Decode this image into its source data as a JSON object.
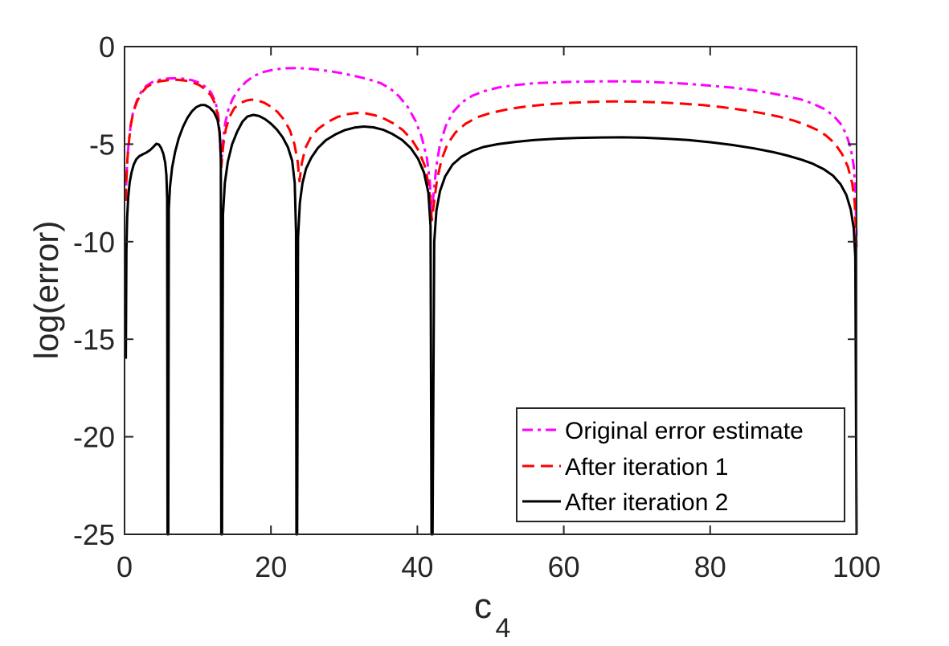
{
  "figure": {
    "background": "#ffffff",
    "axis_color": "#262626",
    "tick_label_color": "#262626",
    "label_color": "#262626",
    "legend_text_color": "#000000",
    "legend_border_color": "#262626",
    "legend_background": "#ffffff"
  },
  "chart_data": {
    "type": "line",
    "title": "",
    "xlabel": "c",
    "xlabel_sub": "4",
    "ylabel": "log(error)",
    "xlim": [
      0,
      100
    ],
    "ylim": [
      -25,
      0
    ],
    "x_ticks": [
      0,
      20,
      40,
      60,
      80,
      100
    ],
    "y_ticks": [
      0,
      -5,
      -10,
      -15,
      -20,
      -25
    ],
    "grid": false,
    "box": true,
    "legend_position": "inside-lower-right",
    "series": [
      {
        "name": "Original error estimate",
        "color": "#ff00ff",
        "line_style": "dash-dot",
        "dash": "13,6,4,6",
        "width": 3,
        "points": [
          [
            0.15,
            -7.9
          ],
          [
            0.25,
            -6.8
          ],
          [
            0.4,
            -5.7
          ],
          [
            0.6,
            -4.8
          ],
          [
            0.85,
            -4.0
          ],
          [
            1.2,
            -3.3
          ],
          [
            1.7,
            -2.75
          ],
          [
            2.3,
            -2.3
          ],
          [
            3.0,
            -2.0
          ],
          [
            3.8,
            -1.82
          ],
          [
            4.8,
            -1.7
          ],
          [
            6.0,
            -1.63
          ],
          [
            7.2,
            -1.62
          ],
          [
            8.2,
            -1.65
          ],
          [
            9.2,
            -1.72
          ],
          [
            10.2,
            -1.85
          ],
          [
            11.0,
            -2.05
          ],
          [
            11.8,
            -2.35
          ],
          [
            12.4,
            -2.8
          ],
          [
            12.8,
            -3.5
          ],
          [
            13.0,
            -4.5
          ],
          [
            13.2,
            -6.1
          ],
          [
            13.45,
            -4.8
          ],
          [
            13.75,
            -3.9
          ],
          [
            14.2,
            -3.2
          ],
          [
            14.8,
            -2.65
          ],
          [
            15.6,
            -2.2
          ],
          [
            16.6,
            -1.8
          ],
          [
            17.7,
            -1.5
          ],
          [
            19.0,
            -1.3
          ],
          [
            20.5,
            -1.17
          ],
          [
            22.0,
            -1.11
          ],
          [
            23.5,
            -1.1
          ],
          [
            25.0,
            -1.13
          ],
          [
            26.5,
            -1.18
          ],
          [
            28.0,
            -1.26
          ],
          [
            29.5,
            -1.35
          ],
          [
            31.0,
            -1.47
          ],
          [
            32.5,
            -1.6
          ],
          [
            33.8,
            -1.73
          ],
          [
            35.0,
            -1.88
          ],
          [
            36.3,
            -2.15
          ],
          [
            37.5,
            -2.55
          ],
          [
            38.7,
            -3.1
          ],
          [
            39.8,
            -3.85
          ],
          [
            40.6,
            -4.65
          ],
          [
            41.3,
            -5.7
          ],
          [
            41.7,
            -6.9
          ],
          [
            41.95,
            -8.6
          ],
          [
            42.25,
            -7.4
          ],
          [
            42.6,
            -6.1
          ],
          [
            43.1,
            -5.0
          ],
          [
            43.9,
            -4.05
          ],
          [
            44.9,
            -3.35
          ],
          [
            46.1,
            -2.85
          ],
          [
            47.5,
            -2.52
          ],
          [
            49.0,
            -2.3
          ],
          [
            51.0,
            -2.1
          ],
          [
            53.5,
            -1.97
          ],
          [
            56.0,
            -1.88
          ],
          [
            59.0,
            -1.83
          ],
          [
            62.0,
            -1.8
          ],
          [
            65.0,
            -1.78
          ],
          [
            68.0,
            -1.78
          ],
          [
            71.0,
            -1.8
          ],
          [
            74.0,
            -1.85
          ],
          [
            77.0,
            -1.91
          ],
          [
            80.0,
            -2.0
          ],
          [
            83.0,
            -2.1
          ],
          [
            86.0,
            -2.24
          ],
          [
            88.5,
            -2.4
          ],
          [
            90.5,
            -2.55
          ],
          [
            92.5,
            -2.72
          ],
          [
            94.0,
            -2.92
          ],
          [
            95.5,
            -3.18
          ],
          [
            96.8,
            -3.52
          ],
          [
            97.8,
            -3.95
          ],
          [
            98.6,
            -4.5
          ],
          [
            99.2,
            -5.2
          ],
          [
            99.6,
            -6.1
          ],
          [
            99.85,
            -7.4
          ],
          [
            100,
            -9.7
          ]
        ]
      },
      {
        "name": "After iteration 1",
        "color": "#ff0000",
        "line_style": "dashed",
        "dash": "15,8",
        "width": 3,
        "points": [
          [
            0.15,
            -7.9
          ],
          [
            0.25,
            -6.85
          ],
          [
            0.4,
            -5.75
          ],
          [
            0.6,
            -4.85
          ],
          [
            0.85,
            -4.05
          ],
          [
            1.2,
            -3.35
          ],
          [
            1.7,
            -2.82
          ],
          [
            2.3,
            -2.38
          ],
          [
            3.0,
            -2.08
          ],
          [
            3.8,
            -1.9
          ],
          [
            4.8,
            -1.78
          ],
          [
            6.0,
            -1.72
          ],
          [
            7.2,
            -1.7
          ],
          [
            8.2,
            -1.74
          ],
          [
            9.2,
            -1.82
          ],
          [
            10.2,
            -1.97
          ],
          [
            11.0,
            -2.18
          ],
          [
            11.8,
            -2.5
          ],
          [
            12.4,
            -2.95
          ],
          [
            12.8,
            -3.65
          ],
          [
            13.0,
            -4.6
          ],
          [
            13.2,
            -6.2
          ],
          [
            13.5,
            -5.0
          ],
          [
            13.85,
            -4.2
          ],
          [
            14.35,
            -3.6
          ],
          [
            15.0,
            -3.15
          ],
          [
            15.9,
            -2.88
          ],
          [
            16.7,
            -2.76
          ],
          [
            17.4,
            -2.72
          ],
          [
            18.2,
            -2.76
          ],
          [
            19.1,
            -2.88
          ],
          [
            20.0,
            -3.08
          ],
          [
            20.9,
            -3.35
          ],
          [
            21.8,
            -3.75
          ],
          [
            22.6,
            -4.3
          ],
          [
            23.2,
            -5.0
          ],
          [
            23.65,
            -5.9
          ],
          [
            23.9,
            -6.9
          ],
          [
            24.2,
            -6.0
          ],
          [
            24.7,
            -5.2
          ],
          [
            25.5,
            -4.6
          ],
          [
            26.5,
            -4.2
          ],
          [
            27.7,
            -3.88
          ],
          [
            29.0,
            -3.62
          ],
          [
            30.3,
            -3.47
          ],
          [
            31.6,
            -3.4
          ],
          [
            32.9,
            -3.42
          ],
          [
            34.2,
            -3.52
          ],
          [
            35.5,
            -3.7
          ],
          [
            36.8,
            -3.95
          ],
          [
            38.0,
            -4.28
          ],
          [
            39.2,
            -4.75
          ],
          [
            40.2,
            -5.35
          ],
          [
            41.0,
            -6.1
          ],
          [
            41.5,
            -7.0
          ],
          [
            41.8,
            -8.0
          ],
          [
            41.98,
            -8.9
          ],
          [
            42.3,
            -7.9
          ],
          [
            42.7,
            -6.8
          ],
          [
            43.3,
            -5.8
          ],
          [
            44.1,
            -5.0
          ],
          [
            45.2,
            -4.4
          ],
          [
            46.6,
            -3.95
          ],
          [
            48.2,
            -3.62
          ],
          [
            50.0,
            -3.4
          ],
          [
            52.5,
            -3.2
          ],
          [
            55.0,
            -3.06
          ],
          [
            58.0,
            -2.95
          ],
          [
            61.0,
            -2.88
          ],
          [
            64.0,
            -2.83
          ],
          [
            67.0,
            -2.81
          ],
          [
            70.0,
            -2.82
          ],
          [
            73.0,
            -2.86
          ],
          [
            76.0,
            -2.92
          ],
          [
            79.0,
            -3.0
          ],
          [
            82.0,
            -3.12
          ],
          [
            85.0,
            -3.28
          ],
          [
            87.5,
            -3.44
          ],
          [
            89.5,
            -3.6
          ],
          [
            91.5,
            -3.8
          ],
          [
            93.0,
            -4.0
          ],
          [
            94.5,
            -4.25
          ],
          [
            95.8,
            -4.55
          ],
          [
            97.0,
            -4.95
          ],
          [
            98.0,
            -5.5
          ],
          [
            98.8,
            -6.15
          ],
          [
            99.4,
            -7.0
          ],
          [
            99.75,
            -8.0
          ],
          [
            100,
            -10.3
          ]
        ]
      },
      {
        "name": "After iteration 2",
        "color": "#000000",
        "line_style": "solid",
        "dash": "",
        "width": 3,
        "points": [
          [
            0.18,
            -16
          ],
          [
            0.25,
            -10.5
          ],
          [
            0.35,
            -8.8
          ],
          [
            0.5,
            -7.7
          ],
          [
            0.7,
            -6.95
          ],
          [
            0.95,
            -6.45
          ],
          [
            1.25,
            -6.05
          ],
          [
            1.6,
            -5.78
          ],
          [
            2.0,
            -5.62
          ],
          [
            2.5,
            -5.52
          ],
          [
            3.0,
            -5.43
          ],
          [
            3.5,
            -5.3
          ],
          [
            4.0,
            -5.12
          ],
          [
            4.35,
            -4.98
          ],
          [
            4.7,
            -5.02
          ],
          [
            5.0,
            -5.2
          ],
          [
            5.3,
            -5.5
          ],
          [
            5.55,
            -5.95
          ],
          [
            5.72,
            -6.6
          ],
          [
            5.82,
            -7.8
          ],
          [
            5.87,
            -25
          ],
          [
            5.97,
            -25
          ],
          [
            6.05,
            -8.3
          ],
          [
            6.2,
            -7.2
          ],
          [
            6.5,
            -6.2
          ],
          [
            6.9,
            -5.4
          ],
          [
            7.4,
            -4.7
          ],
          [
            8.0,
            -4.1
          ],
          [
            8.6,
            -3.65
          ],
          [
            9.2,
            -3.32
          ],
          [
            9.8,
            -3.1
          ],
          [
            10.4,
            -3.0
          ],
          [
            11.0,
            -3.0
          ],
          [
            11.6,
            -3.12
          ],
          [
            12.2,
            -3.35
          ],
          [
            12.7,
            -3.75
          ],
          [
            13.0,
            -4.4
          ],
          [
            13.15,
            -5.6
          ],
          [
            13.22,
            -25
          ],
          [
            13.32,
            -25
          ],
          [
            13.45,
            -8.6
          ],
          [
            13.7,
            -7.0
          ],
          [
            14.1,
            -5.9
          ],
          [
            14.7,
            -5.0
          ],
          [
            15.4,
            -4.35
          ],
          [
            16.1,
            -3.85
          ],
          [
            16.8,
            -3.58
          ],
          [
            17.6,
            -3.5
          ],
          [
            18.4,
            -3.56
          ],
          [
            19.2,
            -3.72
          ],
          [
            20.0,
            -3.95
          ],
          [
            20.8,
            -4.25
          ],
          [
            21.6,
            -4.65
          ],
          [
            22.3,
            -5.15
          ],
          [
            22.9,
            -5.85
          ],
          [
            23.25,
            -7.0
          ],
          [
            23.42,
            -9.5
          ],
          [
            23.48,
            -25
          ],
          [
            23.58,
            -25
          ],
          [
            23.7,
            -9.8
          ],
          [
            23.95,
            -8.0
          ],
          [
            24.3,
            -7.0
          ],
          [
            24.8,
            -6.25
          ],
          [
            25.5,
            -5.7
          ],
          [
            26.4,
            -5.2
          ],
          [
            27.5,
            -4.8
          ],
          [
            28.8,
            -4.5
          ],
          [
            30.1,
            -4.28
          ],
          [
            31.4,
            -4.15
          ],
          [
            32.7,
            -4.1
          ],
          [
            34.0,
            -4.14
          ],
          [
            35.3,
            -4.26
          ],
          [
            36.6,
            -4.48
          ],
          [
            37.9,
            -4.78
          ],
          [
            39.1,
            -5.2
          ],
          [
            40.1,
            -5.75
          ],
          [
            40.9,
            -6.45
          ],
          [
            41.5,
            -7.5
          ],
          [
            41.8,
            -9.2
          ],
          [
            41.93,
            -25
          ],
          [
            42.08,
            -25
          ],
          [
            42.3,
            -10.0
          ],
          [
            42.6,
            -8.4
          ],
          [
            43.1,
            -7.4
          ],
          [
            43.8,
            -6.65
          ],
          [
            44.8,
            -6.05
          ],
          [
            46.0,
            -5.65
          ],
          [
            47.5,
            -5.35
          ],
          [
            49.0,
            -5.15
          ],
          [
            51.0,
            -5.0
          ],
          [
            53.5,
            -4.88
          ],
          [
            56.0,
            -4.79
          ],
          [
            59.0,
            -4.72
          ],
          [
            62.0,
            -4.68
          ],
          [
            65.0,
            -4.66
          ],
          [
            68.0,
            -4.65
          ],
          [
            71.0,
            -4.67
          ],
          [
            74.0,
            -4.72
          ],
          [
            77.0,
            -4.79
          ],
          [
            80.0,
            -4.9
          ],
          [
            83.0,
            -5.04
          ],
          [
            86.0,
            -5.22
          ],
          [
            88.5,
            -5.4
          ],
          [
            90.5,
            -5.58
          ],
          [
            92.5,
            -5.8
          ],
          [
            94.0,
            -6.0
          ],
          [
            95.5,
            -6.28
          ],
          [
            96.8,
            -6.62
          ],
          [
            97.8,
            -7.05
          ],
          [
            98.6,
            -7.6
          ],
          [
            99.2,
            -8.35
          ],
          [
            99.6,
            -9.3
          ],
          [
            99.82,
            -10.8
          ],
          [
            100,
            -25
          ]
        ]
      }
    ]
  }
}
